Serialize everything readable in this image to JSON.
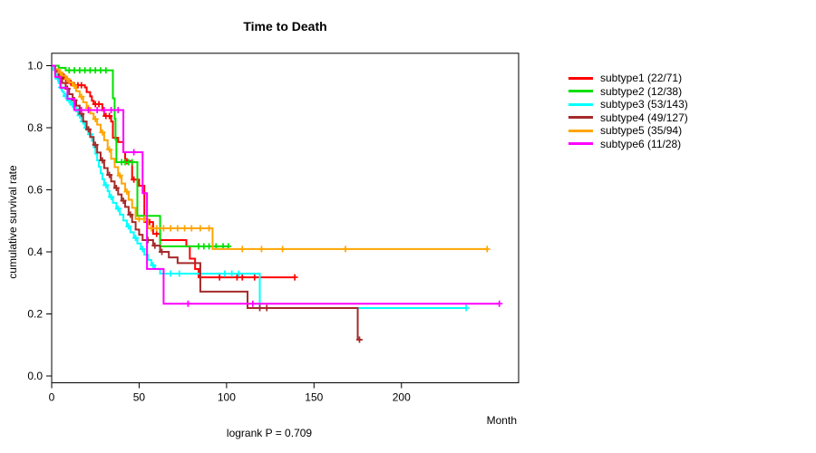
{
  "chart_data": {
    "type": "line",
    "subtype": "kaplan-meier-step-survival",
    "title": "Time to Death",
    "xlabel": "Month",
    "ylabel": "cumulative survival rate",
    "footnote": "logrank P = 0.709",
    "xlim": [
      0,
      267
    ],
    "ylim": [
      0,
      1
    ],
    "xticks": [
      0,
      50,
      100,
      150,
      200
    ],
    "xtick_labels": [
      "0",
      "50",
      "100",
      "150",
      "200"
    ],
    "yticks": [
      0.0,
      0.2,
      0.4,
      0.6,
      0.8,
      1.0
    ],
    "ytick_labels": [
      "0.0",
      "0.2",
      "0.4",
      "0.6",
      "0.8",
      "1.0"
    ],
    "grid": false,
    "legend_position": "right-outside",
    "series": [
      {
        "name": "subtype1",
        "label": "subtype1 (22/71)",
        "events": 22,
        "n": 71,
        "color": "#ff0000",
        "steps": [
          [
            0,
            1
          ],
          [
            2,
            0.986
          ],
          [
            4,
            0.972
          ],
          [
            7,
            0.958
          ],
          [
            9,
            0.944
          ],
          [
            13,
            0.937
          ],
          [
            19,
            0.93
          ],
          [
            20,
            0.915
          ],
          [
            22,
            0.901
          ],
          [
            23,
            0.887
          ],
          [
            24,
            0.876
          ],
          [
            29,
            0.856
          ],
          [
            30,
            0.838
          ],
          [
            34,
            0.82
          ],
          [
            35,
            0.768
          ],
          [
            38,
            0.754
          ],
          [
            41,
            0.721
          ],
          [
            42,
            0.692
          ],
          [
            46,
            0.633
          ],
          [
            50,
            0.613
          ],
          [
            53,
            0.496
          ],
          [
            58,
            0.458
          ],
          [
            62,
            0.438
          ],
          [
            77,
            0.418
          ],
          [
            79,
            0.378
          ],
          [
            82,
            0.345
          ],
          [
            84,
            0.318
          ],
          [
            139,
            0.318
          ]
        ],
        "censors": [
          8,
          11,
          15,
          17,
          25,
          27,
          31,
          33,
          43,
          47,
          56,
          60,
          96,
          106,
          109,
          116,
          139
        ]
      },
      {
        "name": "subtype2",
        "label": "subtype2 (12/38)",
        "events": 12,
        "n": 38,
        "color": "#00e000",
        "steps": [
          [
            0,
            1
          ],
          [
            4,
            0.993
          ],
          [
            8,
            0.985
          ],
          [
            35,
            0.895
          ],
          [
            36,
            0.829
          ],
          [
            36.5,
            0.762
          ],
          [
            37,
            0.689
          ],
          [
            49,
            0.516
          ],
          [
            62,
            0.418
          ],
          [
            101,
            0.418
          ]
        ],
        "censors": [
          10,
          13,
          16,
          19,
          22,
          25,
          28,
          31,
          40,
          42,
          44,
          46,
          84,
          87,
          90,
          94,
          98,
          101
        ]
      },
      {
        "name": "subtype3",
        "label": "subtype3 (53/143)",
        "events": 53,
        "n": 143,
        "color": "#00ffff",
        "steps": [
          [
            0,
            1
          ],
          [
            1,
            0.986
          ],
          [
            2,
            0.972
          ],
          [
            3,
            0.958
          ],
          [
            4,
            0.944
          ],
          [
            5,
            0.93
          ],
          [
            6,
            0.916
          ],
          [
            7,
            0.902
          ],
          [
            9,
            0.888
          ],
          [
            11,
            0.874
          ],
          [
            13,
            0.86
          ],
          [
            15,
            0.84
          ],
          [
            17,
            0.82
          ],
          [
            19,
            0.8
          ],
          [
            21,
            0.779
          ],
          [
            23,
            0.758
          ],
          [
            24,
            0.737
          ],
          [
            25,
            0.716
          ],
          [
            26,
            0.695
          ],
          [
            27,
            0.674
          ],
          [
            28,
            0.653
          ],
          [
            29,
            0.634
          ],
          [
            30,
            0.615
          ],
          [
            32,
            0.596
          ],
          [
            33,
            0.577
          ],
          [
            35,
            0.558
          ],
          [
            37,
            0.539
          ],
          [
            39,
            0.52
          ],
          [
            41,
            0.501
          ],
          [
            43,
            0.482
          ],
          [
            45,
            0.463
          ],
          [
            47,
            0.445
          ],
          [
            49,
            0.427
          ],
          [
            51,
            0.409
          ],
          [
            53,
            0.391
          ],
          [
            55,
            0.374
          ],
          [
            57,
            0.357
          ],
          [
            59,
            0.345
          ],
          [
            62,
            0.33
          ],
          [
            119,
            0.219
          ],
          [
            237,
            0.219
          ]
        ],
        "censors": [
          3.5,
          5.5,
          8,
          10,
          12,
          14,
          16,
          18,
          20,
          22,
          31,
          34,
          38,
          44,
          48,
          52,
          58,
          64,
          68,
          73,
          99,
          103,
          107,
          237
        ]
      },
      {
        "name": "subtype4",
        "label": "subtype4 (49/127)",
        "events": 49,
        "n": 127,
        "color": "#a52a2a",
        "steps": [
          [
            0,
            1
          ],
          [
            2,
            0.98
          ],
          [
            4,
            0.962
          ],
          [
            6,
            0.944
          ],
          [
            8,
            0.926
          ],
          [
            10,
            0.908
          ],
          [
            12,
            0.889
          ],
          [
            14,
            0.871
          ],
          [
            16,
            0.845
          ],
          [
            18,
            0.82
          ],
          [
            20,
            0.795
          ],
          [
            22,
            0.77
          ],
          [
            24,
            0.745
          ],
          [
            26,
            0.72
          ],
          [
            28,
            0.695
          ],
          [
            30,
            0.67
          ],
          [
            32,
            0.648
          ],
          [
            34,
            0.627
          ],
          [
            36,
            0.606
          ],
          [
            38,
            0.585
          ],
          [
            40,
            0.565
          ],
          [
            42,
            0.545
          ],
          [
            44,
            0.52
          ],
          [
            46,
            0.496
          ],
          [
            48,
            0.472
          ],
          [
            50,
            0.455
          ],
          [
            52,
            0.438
          ],
          [
            58,
            0.42
          ],
          [
            62,
            0.4
          ],
          [
            67,
            0.382
          ],
          [
            72,
            0.364
          ],
          [
            85,
            0.272
          ],
          [
            112,
            0.219
          ],
          [
            175,
            0.117
          ],
          [
            177,
            0.117
          ]
        ],
        "censors": [
          5,
          9,
          13,
          17,
          21,
          25,
          29,
          33,
          37,
          41,
          45,
          55,
          59,
          63,
          119,
          123,
          176
        ]
      },
      {
        "name": "subtype5",
        "label": "subtype5 (35/94)",
        "events": 35,
        "n": 94,
        "color": "#ffa500",
        "steps": [
          [
            0,
            1
          ],
          [
            2,
            0.989
          ],
          [
            4,
            0.978
          ],
          [
            6,
            0.968
          ],
          [
            8,
            0.957
          ],
          [
            10,
            0.946
          ],
          [
            12,
            0.935
          ],
          [
            14,
            0.918
          ],
          [
            16,
            0.9
          ],
          [
            18,
            0.882
          ],
          [
            20,
            0.864
          ],
          [
            22,
            0.846
          ],
          [
            24,
            0.828
          ],
          [
            26,
            0.81
          ],
          [
            28,
            0.785
          ],
          [
            30,
            0.76
          ],
          [
            32,
            0.73
          ],
          [
            34,
            0.7
          ],
          [
            36,
            0.673
          ],
          [
            38,
            0.646
          ],
          [
            40,
            0.62
          ],
          [
            42,
            0.594
          ],
          [
            44,
            0.568
          ],
          [
            46,
            0.542
          ],
          [
            48,
            0.506
          ],
          [
            55,
            0.476
          ],
          [
            92,
            0.409
          ],
          [
            249,
            0.409
          ]
        ],
        "censors": [
          5,
          9,
          13,
          17,
          21,
          25,
          29,
          33,
          39,
          43,
          50,
          53,
          57,
          60,
          64,
          68,
          72,
          76,
          80,
          85,
          90,
          109,
          120,
          132,
          168,
          249
        ]
      },
      {
        "name": "subtype6",
        "label": "subtype6 (11/28)",
        "events": 11,
        "n": 28,
        "color": "#ff00ff",
        "steps": [
          [
            0,
            1
          ],
          [
            2,
            0.964
          ],
          [
            5,
            0.929
          ],
          [
            9,
            0.893
          ],
          [
            13,
            0.857
          ],
          [
            41,
            0.721
          ],
          [
            52,
            0.589
          ],
          [
            54.5,
            0.345
          ],
          [
            64,
            0.233
          ],
          [
            256,
            0.233
          ]
        ],
        "censors": [
          17,
          21,
          26,
          30,
          34,
          38,
          47,
          78,
          115,
          256
        ]
      }
    ]
  }
}
